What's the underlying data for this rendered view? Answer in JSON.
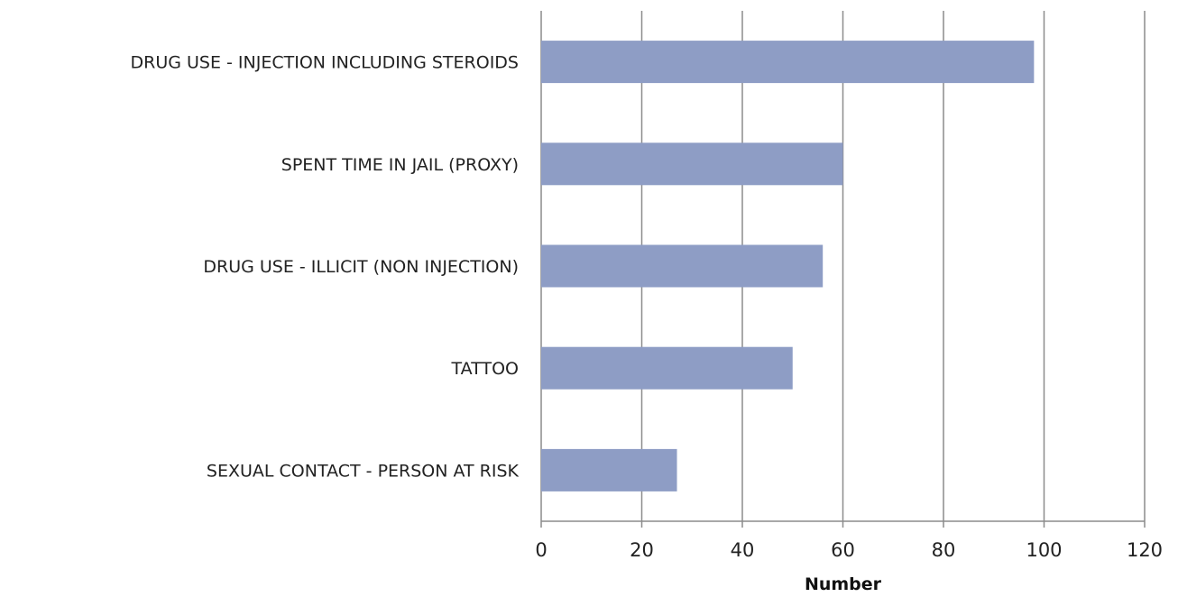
{
  "chart_data": {
    "type": "bar",
    "orientation": "horizontal",
    "categories": [
      "DRUG USE - INJECTION INCLUDING STEROIDS",
      "SPENT TIME IN JAIL (PROXY)",
      "DRUG USE - ILLICIT (NON INJECTION)",
      "TATTOO",
      "SEXUAL CONTACT - PERSON AT RISK"
    ],
    "values": [
      98,
      60,
      56,
      50,
      27
    ],
    "title": "",
    "xlabel": "Number",
    "ylabel": "",
    "xlim": [
      0,
      120
    ],
    "xticks": [
      0,
      20,
      40,
      60,
      80,
      100,
      120
    ],
    "grid": true,
    "legend": "none",
    "bar_color": "#8e9dc5",
    "grid_color": "#8c8c8c"
  }
}
